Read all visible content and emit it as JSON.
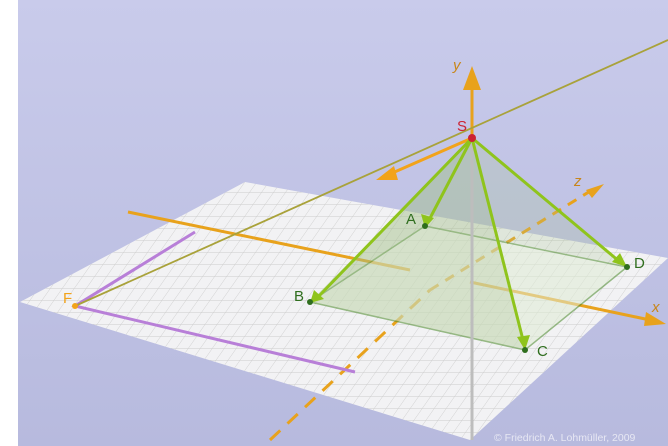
{
  "axes": {
    "x": "x",
    "y": "y",
    "z": "z"
  },
  "points": {
    "S": "S",
    "A": "A",
    "B": "B",
    "C": "C",
    "D": "D",
    "F": "F"
  },
  "credit": "© Friedrich A. Lohmüller, 2009",
  "colors": {
    "background_top": "#c7c9ea",
    "background_bottom": "#b9bce0",
    "axis": "#e8a21c",
    "edge": "#8fc41c",
    "base": "#4a8a2a",
    "apex": "#cc2233",
    "projection": "#b87fd8",
    "label_green": "#2f6e1e",
    "label_orange": "#f2a31a"
  }
}
